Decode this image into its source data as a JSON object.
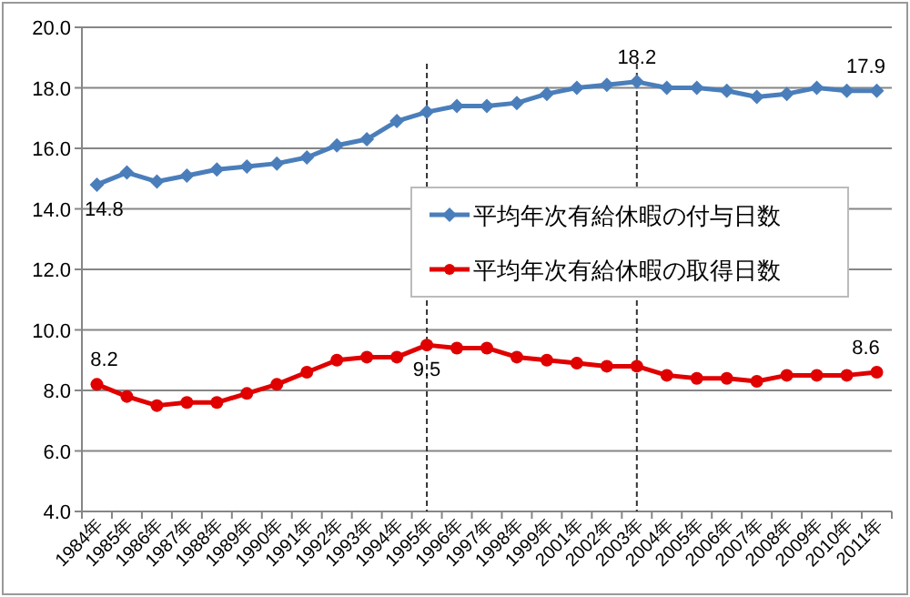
{
  "chart_data": {
    "type": "line",
    "categories": [
      "1984年",
      "1985年",
      "1986年",
      "1987年",
      "1988年",
      "1989年",
      "1990年",
      "1991年",
      "1992年",
      "1993年",
      "1994年",
      "1995年",
      "1996年",
      "1997年",
      "1998年",
      "1999年",
      "2001年",
      "2002年",
      "2003年",
      "2004年",
      "2005年",
      "2006年",
      "2007年",
      "2008年",
      "2009年",
      "2010年",
      "2011年"
    ],
    "series": [
      {
        "name": "平均年次有給休暇の付与日数",
        "color": "#4a7ebb",
        "marker": "diamond",
        "values": [
          14.8,
          15.2,
          14.9,
          15.1,
          15.3,
          15.4,
          15.5,
          15.7,
          16.1,
          16.3,
          16.9,
          17.2,
          17.4,
          17.4,
          17.5,
          17.8,
          18.0,
          18.1,
          18.2,
          18.0,
          18.0,
          17.9,
          17.7,
          17.8,
          18.0,
          17.9,
          17.9
        ],
        "value_labels": [
          "14.8",
          null,
          null,
          null,
          null,
          null,
          null,
          null,
          null,
          null,
          null,
          null,
          null,
          null,
          null,
          null,
          null,
          null,
          "18.2",
          null,
          null,
          null,
          null,
          null,
          null,
          null,
          "17.9"
        ]
      },
      {
        "name": "平均年次有給休暇の取得日数",
        "color": "#e00000",
        "marker": "circle",
        "values": [
          8.2,
          7.8,
          7.5,
          7.6,
          7.6,
          7.9,
          8.2,
          8.6,
          9.0,
          9.1,
          9.1,
          9.5,
          9.4,
          9.4,
          9.1,
          9.0,
          8.9,
          8.8,
          8.8,
          8.5,
          8.4,
          8.4,
          8.3,
          8.5,
          8.5,
          8.5,
          8.6
        ],
        "value_labels": [
          "8.2",
          null,
          null,
          null,
          null,
          null,
          null,
          null,
          null,
          null,
          null,
          "9.5",
          null,
          null,
          null,
          null,
          null,
          null,
          null,
          null,
          null,
          null,
          null,
          null,
          null,
          null,
          "8.6"
        ]
      }
    ],
    "ylim": [
      4,
      20
    ],
    "yticks": [
      {
        "value": 4,
        "label": "4.0"
      },
      {
        "value": 6,
        "label": "6.0"
      },
      {
        "value": 8,
        "label": "8.0"
      },
      {
        "value": 10,
        "label": "10.0"
      },
      {
        "value": 12,
        "label": "12.0"
      },
      {
        "value": 14,
        "label": "14.0"
      },
      {
        "value": 16,
        "label": "16.0"
      },
      {
        "value": 18,
        "label": "18.0"
      },
      {
        "value": 20,
        "label": "20.0"
      }
    ],
    "grid": "y",
    "legend": "right",
    "ref_lines": [
      {
        "axis": "x",
        "value": "1995年",
        "line_style": "dashed",
        "color": "#333333"
      },
      {
        "axis": "x",
        "value": "2003年",
        "line_style": "dashed",
        "color": "#333333"
      }
    ]
  }
}
